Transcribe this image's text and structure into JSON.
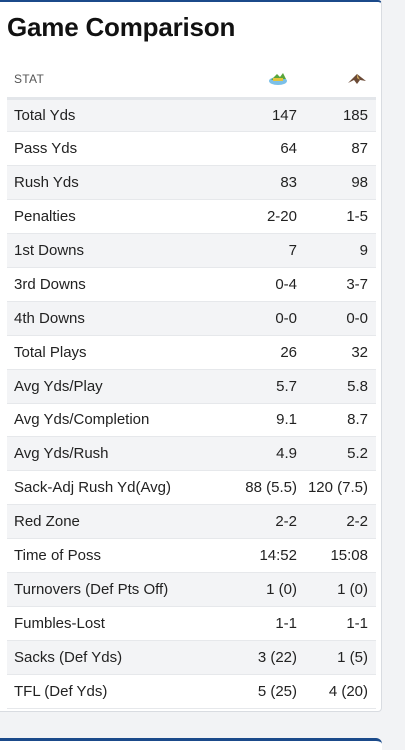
{
  "title": "Game Comparison",
  "table": {
    "header": {
      "stat": "STAT"
    },
    "teams": [
      {
        "icon": "team-1-logo-icon",
        "color": "#4a9a3a"
      },
      {
        "icon": "team-2-logo-icon",
        "color": "#5a3b2b"
      }
    ],
    "rows": [
      {
        "stat": "Total Yds",
        "v1": "147",
        "v2": "185"
      },
      {
        "stat": "Pass Yds",
        "v1": "64",
        "v2": "87"
      },
      {
        "stat": "Rush Yds",
        "v1": "83",
        "v2": "98"
      },
      {
        "stat": "Penalties",
        "v1": "2-20",
        "v2": "1-5"
      },
      {
        "stat": "1st Downs",
        "v1": "7",
        "v2": "9"
      },
      {
        "stat": "3rd Downs",
        "v1": "0-4",
        "v2": "3-7"
      },
      {
        "stat": "4th Downs",
        "v1": "0-0",
        "v2": "0-0"
      },
      {
        "stat": "Total Plays",
        "v1": "26",
        "v2": "32"
      },
      {
        "stat": "Avg Yds/Play",
        "v1": "5.7",
        "v2": "5.8"
      },
      {
        "stat": "Avg Yds/Completion",
        "v1": "9.1",
        "v2": "8.7"
      },
      {
        "stat": "Avg Yds/Rush",
        "v1": "4.9",
        "v2": "5.2"
      },
      {
        "stat": "Sack-Adj Rush Yd(Avg)",
        "v1": "88 (5.5)",
        "v2": "120 (7.5)"
      },
      {
        "stat": "Red Zone",
        "v1": "2-2",
        "v2": "2-2"
      },
      {
        "stat": "Time of Poss",
        "v1": "14:52",
        "v2": "15:08"
      },
      {
        "stat": "Turnovers (Def Pts Off)",
        "v1": "1 (0)",
        "v2": "1 (0)"
      },
      {
        "stat": "Fumbles-Lost",
        "v1": "1-1",
        "v2": "1-1"
      },
      {
        "stat": "Sacks (Def Yds)",
        "v1": "3 (22)",
        "v2": "1 (5)"
      },
      {
        "stat": "TFL (Def Yds)",
        "v1": "5 (25)",
        "v2": "4 (20)"
      }
    ]
  }
}
